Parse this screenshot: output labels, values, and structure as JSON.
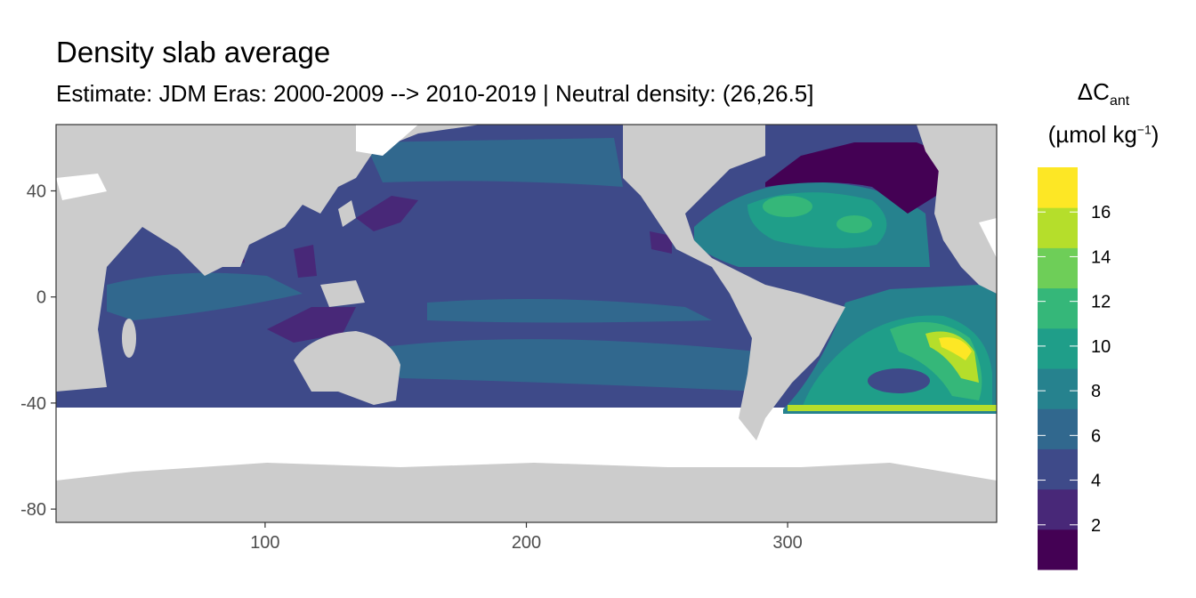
{
  "chart_data": {
    "type": "heatmap",
    "title": "Density slab average",
    "subtitle": "Estimate: JDM Eras: 2000-2009 --> 2010-2019 | Neutral density: (26,26.5]",
    "xlabel": "",
    "ylabel": "",
    "xlim": [
      20,
      380
    ],
    "ylim": [
      -85,
      65
    ],
    "x_ticks": [
      "100",
      "200",
      "300"
    ],
    "y_ticks": [
      "40",
      "0",
      "-40",
      "-80"
    ],
    "x_tick_values": [
      100,
      200,
      300
    ],
    "y_tick_values": [
      40,
      0,
      -40,
      -80
    ],
    "grid": true,
    "legend": {
      "placement": "right",
      "title_main": "ΔC",
      "title_sub": "ant",
      "unit_open": "(µmol kg",
      "unit_sup": "−1",
      "unit_close": ")",
      "breaks": [
        "2",
        "4",
        "6",
        "8",
        "10",
        "12",
        "14",
        "16"
      ],
      "break_values": [
        2,
        4,
        6,
        8,
        10,
        12,
        14,
        16
      ],
      "range": [
        0,
        18
      ],
      "colors": [
        "#440154",
        "#482878",
        "#3e4a89",
        "#31688e",
        "#26828e",
        "#1f9e89",
        "#35b779",
        "#6ece58",
        "#b5de2b",
        "#fde725"
      ]
    },
    "colors": {
      "land": "#cccccc",
      "no_data": "#ffffff",
      "grid": "#ebebeb",
      "panel_border": "#333333"
    }
  }
}
